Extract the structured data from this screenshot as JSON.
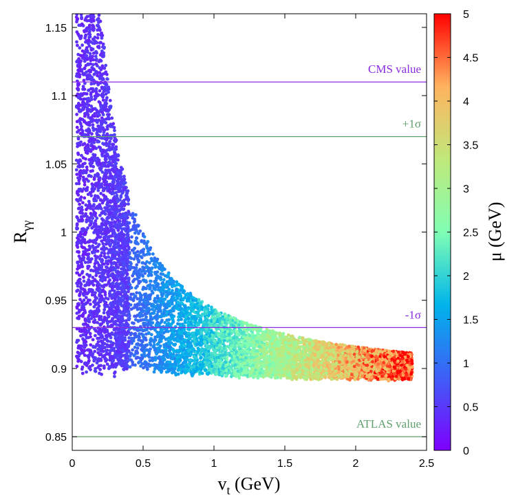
{
  "chart_data": {
    "type": "scatter",
    "title": "",
    "xlabel": "v",
    "xlabel_sub": "t",
    "xlabel_units": " (GeV)",
    "ylabel": "R",
    "ylabel_sub": "γγ",
    "colorbar_label": "μ (GeV)",
    "xlim": [
      0,
      2.5
    ],
    "ylim": [
      0.84,
      1.16
    ],
    "colorbar_range": [
      0,
      5
    ],
    "x_ticks": [
      "0",
      "0.5",
      "1",
      "1.5",
      "2",
      "2.5"
    ],
    "x_tick_values": [
      0,
      0.5,
      1,
      1.5,
      2,
      2.5
    ],
    "y_ticks": [
      "0.85",
      "0.9",
      "0.95",
      "1",
      "1.05",
      "1.1",
      "1.15"
    ],
    "y_tick_values": [
      0.85,
      0.9,
      0.95,
      1.0,
      1.05,
      1.1,
      1.15
    ],
    "colorbar_ticks": [
      "0",
      "0.5",
      "1",
      "1.5",
      "2",
      "2.5",
      "3",
      "3.5",
      "4",
      "4.5",
      "5"
    ],
    "colorbar_tick_values": [
      0,
      0.5,
      1,
      1.5,
      2,
      2.5,
      3,
      3.5,
      4,
      4.5,
      5
    ],
    "reference_lines": [
      {
        "label": "CMS value",
        "y": 1.11,
        "color": "#8a2be2"
      },
      {
        "label": "+1σ",
        "y": 1.07,
        "color": "#5f9e6e"
      },
      {
        "label": "-1σ",
        "y": 0.93,
        "color": "#8a2be2"
      },
      {
        "label": "ATLAS value",
        "y": 0.85,
        "color": "#5f9e6e"
      }
    ],
    "scatter_model": {
      "x_range": [
        0.03,
        2.4
      ],
      "y_upper_formula": "0.888 + 0.056 / v_t",
      "y_lower_floor": 0.89,
      "y_upper_cap": 1.16,
      "color_formula": "mu ≈ 2.1 * v_t",
      "approx_points": 9000
    }
  },
  "colors": {
    "colormap": [
      "#7f00ff",
      "#3f5ef7",
      "#00b4eb",
      "#80ffb4",
      "#c0e87a",
      "#ffb360",
      "#ff0000"
    ]
  }
}
